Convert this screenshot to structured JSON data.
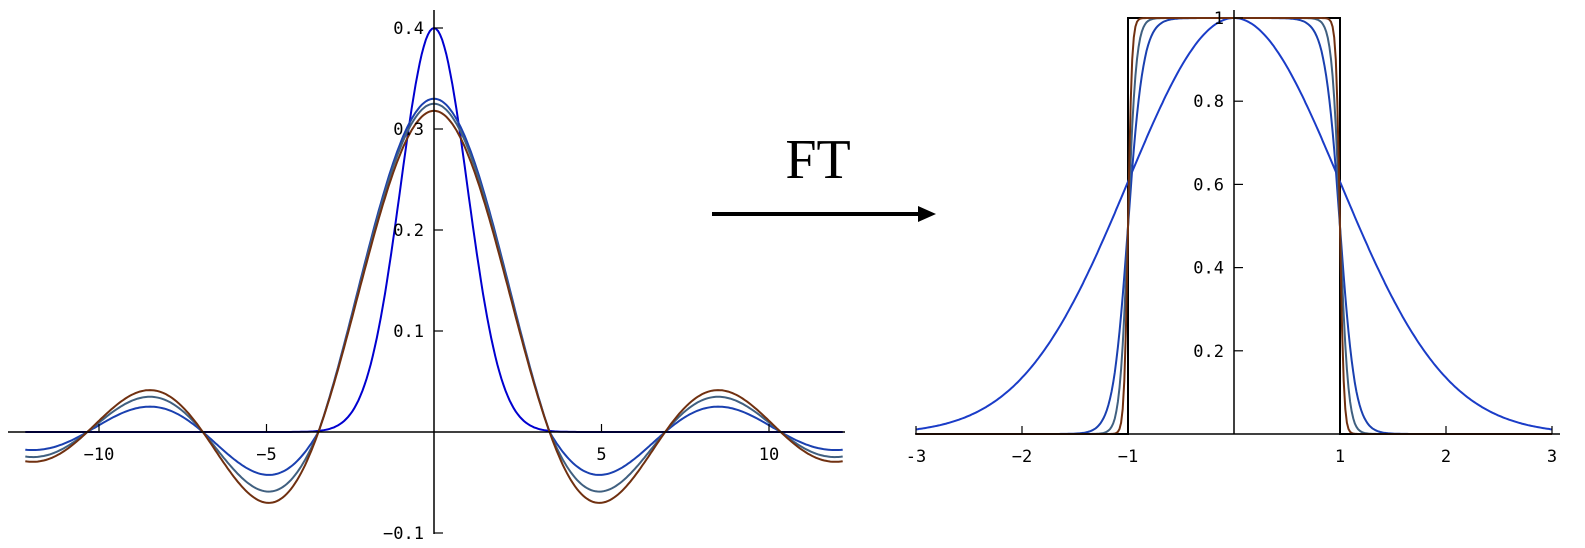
{
  "arrow_label": "FT",
  "chart_data": [
    {
      "type": "line",
      "title": "",
      "xlabel": "",
      "ylabel": "",
      "xlim": [
        -12.2,
        12.2
      ],
      "ylim": [
        -0.1,
        0.4
      ],
      "xticks": [
        -10,
        -5,
        5,
        10
      ],
      "xtick_labels": [
        "−10",
        "−5",
        "5",
        "10"
      ],
      "yticks": [
        -0.1,
        0.1,
        0.2,
        0.3,
        0.4
      ],
      "ytick_labels": [
        "−0.1",
        "0.1",
        "0.2",
        "0.3",
        "0.4"
      ],
      "grid": false,
      "series": [
        {
          "color": "#0000d0",
          "kind": "gaussian",
          "amp": 0.4,
          "width": 1.0
        },
        {
          "color": "#1a40b0",
          "kind": "sinc",
          "amp": 0.33,
          "cutoff": 1.0,
          "taper": 0.0135
        },
        {
          "color": "#406080",
          "kind": "sinc",
          "amp": 0.325,
          "cutoff": 1.0,
          "taper": 0.027
        },
        {
          "color": "#703010",
          "kind": "sinc",
          "amp": 0.318,
          "cutoff": 1.0,
          "taper": 0.037
        }
      ]
    },
    {
      "type": "line",
      "title": "",
      "xlabel": "",
      "ylabel": "",
      "xlim": [
        -3,
        3
      ],
      "ylim": [
        0,
        1
      ],
      "xticks": [
        -3,
        -2,
        -1,
        1,
        2,
        3
      ],
      "xtick_labels": [
        "-3",
        "−2",
        "−1",
        "1",
        "2",
        "3"
      ],
      "yticks": [
        0.2,
        0.4,
        0.6,
        0.8,
        1
      ],
      "ytick_labels": [
        "0.2",
        "0.4",
        "0.6",
        "0.8",
        "1"
      ],
      "grid": false,
      "series": [
        {
          "color": "#000000",
          "kind": "rect",
          "cutoff": 1.0
        },
        {
          "color": "#1a3cc8",
          "kind": "gaussian",
          "amp": 1.0,
          "width": 1.0
        },
        {
          "color": "#1a40b0",
          "kind": "logistic",
          "cutoff": 1.0,
          "steepness": 14
        },
        {
          "color": "#406080",
          "kind": "logistic",
          "cutoff": 1.0,
          "steepness": 26
        },
        {
          "color": "#703010",
          "kind": "logistic",
          "cutoff": 1.0,
          "steepness": 55
        }
      ]
    }
  ]
}
